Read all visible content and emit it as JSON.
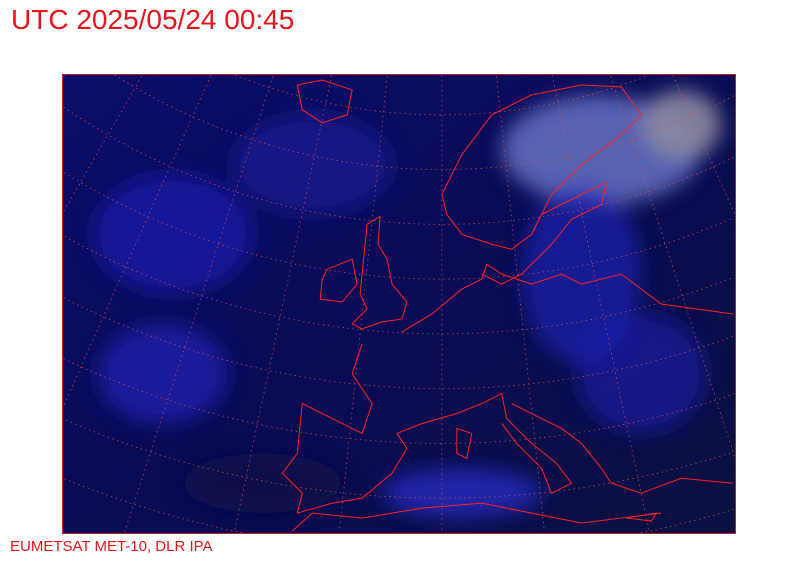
{
  "header": {
    "title": "UTC 2025/05/24 00:45"
  },
  "footer": {
    "credit": "EUMETSAT MET-10, DLR IPA"
  },
  "map": {
    "type": "satellite-imagery",
    "region": "Europe",
    "colors": {
      "background": "#0a0c5a",
      "clouds": "#2a2ad8",
      "coastline": "#ff2020",
      "graticule": "#e05050",
      "annotation": "#e8141c"
    }
  }
}
